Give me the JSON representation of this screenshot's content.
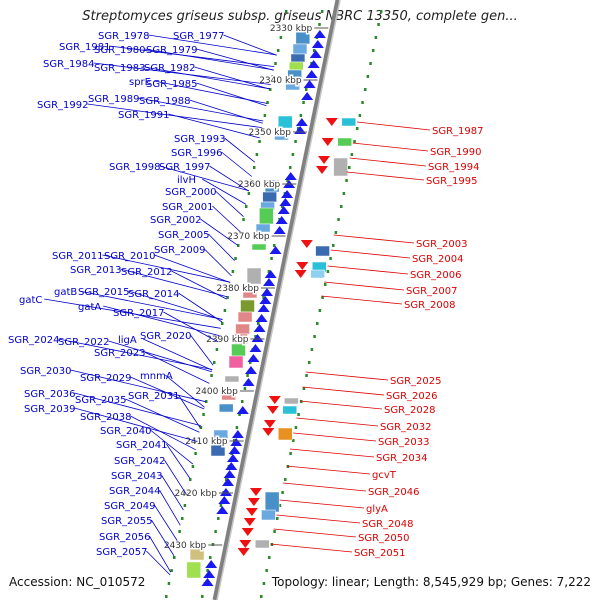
{
  "title": "Streptomyces griseus subsp. griseus NBRC 13350, complete gen...",
  "footer": {
    "accession": "Accession: NC_010572",
    "summary": "Topology: linear; Length: 8,545,929 bp; Genes: 7,222"
  },
  "colors": {
    "left_label": "#0000cc",
    "right_label": "#dd0000",
    "axis": "#808080",
    "ticks": "#2a8a2a",
    "forward_arrow": "#1a1aee",
    "reverse_arrow": "#ee1111"
  },
  "scale_ticks": [
    "2330 kbp",
    "2340 kbp",
    "2350 kbp",
    "2360 kbp",
    "2370 kbp",
    "2380 kbp",
    "2390 kbp",
    "2400 kbp",
    "2410 kbp",
    "2420 kbp",
    "2430 kbp"
  ],
  "left_genes": [
    "SGR_1978",
    "SGR_1977",
    "SGR_1981",
    "SGR_1980",
    "SGR_1979",
    "SGR_1984",
    "SGR_1983",
    "SGR_1982",
    "sprE",
    "SGR_1985",
    "SGR_1989",
    "SGR_1988",
    "SGR_1992",
    "SGR_1991",
    "SGR_1993",
    "SGR_1996",
    "SGR_1998",
    "SGR_1997",
    "ilvH",
    "SGR_2000",
    "SGR_2001",
    "SGR_2002",
    "SGR_2005",
    "SGR_2009",
    "SGR_2011",
    "SGR_2010",
    "SGR_2013",
    "SGR_2012",
    "gatB",
    "SGR_2015",
    "SGR_2014",
    "gatC",
    "gatA",
    "SGR_2017",
    "SGR_2020",
    "SGR_2024",
    "SGR_2022",
    "ligA",
    "SGR_2023",
    "SGR_2030",
    "SGR_2029",
    "mnmA",
    "SGR_2036",
    "SGR_2031",
    "SGR_2035",
    "SGR_2039",
    "SGR_2038",
    "SGR_2040",
    "SGR_2041",
    "SGR_2042",
    "SGR_2043",
    "SGR_2044",
    "SGR_2049",
    "SGR_2055",
    "SGR_2056",
    "SGR_2057"
  ],
  "right_genes": [
    "SGR_1987",
    "SGR_1990",
    "SGR_1994",
    "SGR_1995",
    "SGR_2003",
    "SGR_2004",
    "SGR_2006",
    "SGR_2007",
    "SGR_2008",
    "SGR_2025",
    "SGR_2026",
    "SGR_2028",
    "SGR_2032",
    "SGR_2033",
    "SGR_2034",
    "gcvT",
    "SGR_2046",
    "glyA",
    "SGR_2048",
    "SGR_2050",
    "SGR_2051"
  ]
}
